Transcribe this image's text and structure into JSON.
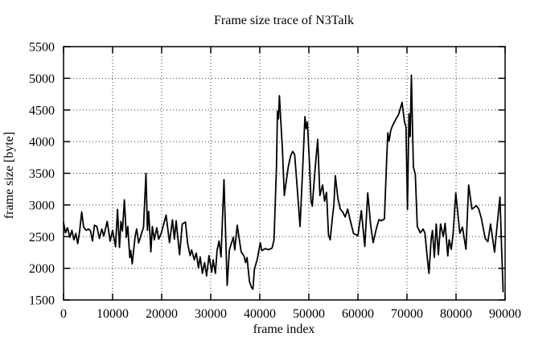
{
  "title": "Frame size trace of N3Talk",
  "chart_data": {
    "type": "line",
    "title": "Frame size trace of N3Talk",
    "xlabel": "frame index",
    "ylabel": "frame size [byte]",
    "xlim": [
      0,
      90000
    ],
    "ylim": [
      1500,
      5500
    ],
    "x_ticks": [
      0,
      10000,
      20000,
      30000,
      40000,
      50000,
      60000,
      70000,
      80000,
      90000
    ],
    "y_ticks": [
      1500,
      2000,
      2500,
      3000,
      3500,
      4000,
      4500,
      5000,
      5500
    ],
    "grid": "dotted",
    "legend": "none",
    "line_color": "#000000",
    "grid_color": "#333333",
    "background": "#ffffff",
    "series": [
      {
        "name": "frame size",
        "points": [
          [
            0,
            2720
          ],
          [
            400,
            2560
          ],
          [
            800,
            2640
          ],
          [
            1300,
            2490
          ],
          [
            1700,
            2600
          ],
          [
            2100,
            2450
          ],
          [
            2500,
            2550
          ],
          [
            2900,
            2390
          ],
          [
            3300,
            2600
          ],
          [
            3700,
            2890
          ],
          [
            4100,
            2650
          ],
          [
            4600,
            2600
          ],
          [
            5100,
            2620
          ],
          [
            5500,
            2590
          ],
          [
            5900,
            2430
          ],
          [
            6300,
            2680
          ],
          [
            6800,
            2660
          ],
          [
            7300,
            2470
          ],
          [
            7800,
            2620
          ],
          [
            8200,
            2510
          ],
          [
            8900,
            2740
          ],
          [
            9500,
            2430
          ],
          [
            10000,
            2600
          ],
          [
            10600,
            2340
          ],
          [
            11000,
            2930
          ],
          [
            11400,
            2330
          ],
          [
            11700,
            2740
          ],
          [
            12000,
            2590
          ],
          [
            12400,
            3080
          ],
          [
            12800,
            2490
          ],
          [
            13100,
            2660
          ],
          [
            13500,
            2170
          ],
          [
            13700,
            2280
          ],
          [
            14000,
            2070
          ],
          [
            14600,
            2510
          ],
          [
            14900,
            2620
          ],
          [
            15300,
            2400
          ],
          [
            15900,
            2550
          ],
          [
            16300,
            2650
          ],
          [
            16800,
            3500
          ],
          [
            17100,
            2600
          ],
          [
            17350,
            2900
          ],
          [
            17800,
            2260
          ],
          [
            18100,
            2660
          ],
          [
            18500,
            2450
          ],
          [
            19000,
            2640
          ],
          [
            19400,
            2460
          ],
          [
            19900,
            2550
          ],
          [
            20900,
            2840
          ],
          [
            21600,
            2405
          ],
          [
            22200,
            2765
          ],
          [
            22600,
            2460
          ],
          [
            22950,
            2750
          ],
          [
            23650,
            2215
          ],
          [
            24200,
            2700
          ],
          [
            24850,
            2730
          ],
          [
            25300,
            2390
          ],
          [
            25800,
            2200
          ],
          [
            26100,
            2290
          ],
          [
            26650,
            2135
          ],
          [
            27050,
            2240
          ],
          [
            27500,
            2010
          ],
          [
            27850,
            2180
          ],
          [
            28300,
            1920
          ],
          [
            28750,
            2090
          ],
          [
            29150,
            1880
          ],
          [
            29650,
            2200
          ],
          [
            30200,
            1940
          ],
          [
            30500,
            2135
          ],
          [
            30950,
            1920
          ],
          [
            31300,
            2290
          ],
          [
            31700,
            2430
          ],
          [
            32100,
            2180
          ],
          [
            32700,
            3400
          ],
          [
            33350,
            1730
          ],
          [
            33800,
            2290
          ],
          [
            34600,
            2490
          ],
          [
            34900,
            2290
          ],
          [
            35400,
            2680
          ],
          [
            36200,
            2260
          ],
          [
            36800,
            2190
          ],
          [
            37100,
            2090
          ],
          [
            37400,
            2170
          ],
          [
            37900,
            1790
          ],
          [
            38300,
            1700
          ],
          [
            38600,
            1670
          ],
          [
            38900,
            1980
          ],
          [
            39500,
            2150
          ],
          [
            40100,
            2405
          ],
          [
            40400,
            2280
          ],
          [
            41100,
            2310
          ],
          [
            41800,
            2295
          ],
          [
            42500,
            2320
          ],
          [
            42900,
            2450
          ],
          [
            43400,
            3600
          ],
          [
            43600,
            4480
          ],
          [
            43800,
            4360
          ],
          [
            44000,
            4725
          ],
          [
            44300,
            4300
          ],
          [
            44600,
            3900
          ],
          [
            45000,
            3150
          ],
          [
            45400,
            3380
          ],
          [
            45800,
            3600
          ],
          [
            46300,
            3780
          ],
          [
            46700,
            3845
          ],
          [
            47100,
            3800
          ],
          [
            47600,
            3300
          ],
          [
            48200,
            2660
          ],
          [
            48700,
            3500
          ],
          [
            49200,
            4395
          ],
          [
            49450,
            4205
          ],
          [
            49700,
            4310
          ],
          [
            50100,
            3700
          ],
          [
            50450,
            3060
          ],
          [
            50700,
            2980
          ],
          [
            51200,
            3500
          ],
          [
            51800,
            4036
          ],
          [
            52250,
            3150
          ],
          [
            52800,
            3316
          ],
          [
            53200,
            3060
          ],
          [
            53600,
            3200
          ],
          [
            54000,
            2530
          ],
          [
            54350,
            2450
          ],
          [
            54800,
            2800
          ],
          [
            55100,
            3000
          ],
          [
            55400,
            3464
          ],
          [
            55900,
            3110
          ],
          [
            56400,
            2935
          ],
          [
            56900,
            2890
          ],
          [
            57400,
            2810
          ],
          [
            57900,
            2935
          ],
          [
            58400,
            2770
          ],
          [
            59100,
            2550
          ],
          [
            60000,
            2515
          ],
          [
            60700,
            2910
          ],
          [
            61400,
            2345
          ],
          [
            62000,
            3190
          ],
          [
            62600,
            2680
          ],
          [
            63100,
            2405
          ],
          [
            63800,
            2640
          ],
          [
            64300,
            2770
          ],
          [
            64800,
            2750
          ],
          [
            65400,
            2780
          ],
          [
            65900,
            3800
          ],
          [
            66100,
            4140
          ],
          [
            66350,
            4010
          ],
          [
            66700,
            4180
          ],
          [
            67100,
            4260
          ],
          [
            67700,
            4350
          ],
          [
            68300,
            4430
          ],
          [
            69000,
            4620
          ],
          [
            69500,
            4310
          ],
          [
            69800,
            4230
          ],
          [
            70100,
            2930
          ],
          [
            70400,
            4440
          ],
          [
            70650,
            4080
          ],
          [
            70900,
            5050
          ],
          [
            71300,
            3600
          ],
          [
            71700,
            3480
          ],
          [
            72100,
            2660
          ],
          [
            72700,
            2560
          ],
          [
            73300,
            2620
          ],
          [
            73660,
            2554
          ],
          [
            74100,
            2195
          ],
          [
            74480,
            1920
          ],
          [
            74920,
            2449
          ],
          [
            75190,
            2596
          ],
          [
            75580,
            2173
          ],
          [
            75960,
            2700
          ],
          [
            76400,
            2215
          ],
          [
            76840,
            2700
          ],
          [
            77390,
            2500
          ],
          [
            77770,
            2710
          ],
          [
            78320,
            2195
          ],
          [
            78590,
            2450
          ],
          [
            79030,
            2300
          ],
          [
            79410,
            2554
          ],
          [
            79950,
            3190
          ],
          [
            80770,
            2554
          ],
          [
            81310,
            2650
          ],
          [
            82020,
            2300
          ],
          [
            82570,
            3316
          ],
          [
            83230,
            2935
          ],
          [
            83700,
            2960
          ],
          [
            84100,
            2990
          ],
          [
            84600,
            2940
          ],
          [
            85130,
            2800
          ],
          [
            85950,
            2470
          ],
          [
            86490,
            2420
          ],
          [
            87030,
            2700
          ],
          [
            87850,
            2255
          ],
          [
            88400,
            2700
          ],
          [
            88950,
            3126
          ],
          [
            89220,
            2470
          ],
          [
            89600,
            1630
          ]
        ]
      }
    ]
  }
}
